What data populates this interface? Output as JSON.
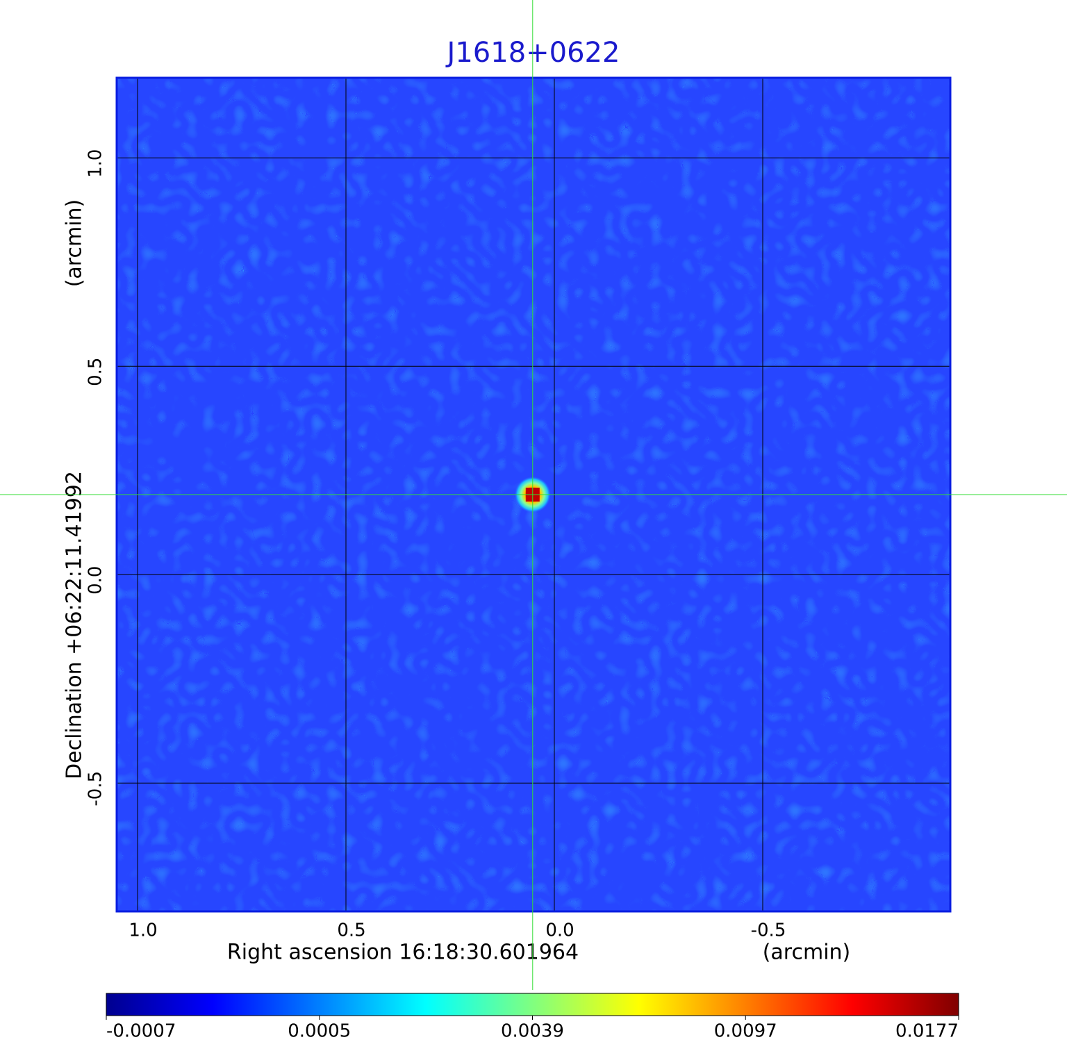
{
  "chart_data": {
    "type": "image",
    "title": "J1618+0622",
    "x_label": "Right ascension  16:18:30.601964",
    "x_unit": "(arcmin)",
    "y_label": "Declination  +06:22:11.41992",
    "y_unit": "(arcmin)",
    "xlim": [
      1.05,
      -0.95
    ],
    "ylim": [
      -0.808,
      1.192
    ],
    "xticks": [
      {
        "value": 1,
        "label": "1.0"
      },
      {
        "value": 0.5,
        "label": "0.5"
      },
      {
        "value": 0,
        "label": "0.0"
      },
      {
        "value": -0.5,
        "label": "-0.5"
      }
    ],
    "yticks": [
      {
        "value": 1,
        "label": "1.0"
      },
      {
        "value": 0.5,
        "label": "0.5"
      },
      {
        "value": 0,
        "label": "0.0"
      },
      {
        "value": -0.5,
        "label": "-0.5"
      }
    ],
    "grid": true,
    "crosshair": {
      "x": 0.052,
      "y": 0.192,
      "color": "#33dd33"
    },
    "colorbar": {
      "ticks": [
        -0.0007,
        0.0005,
        0.0039,
        0.0097,
        0.0177
      ],
      "colormap": "jet"
    }
  }
}
